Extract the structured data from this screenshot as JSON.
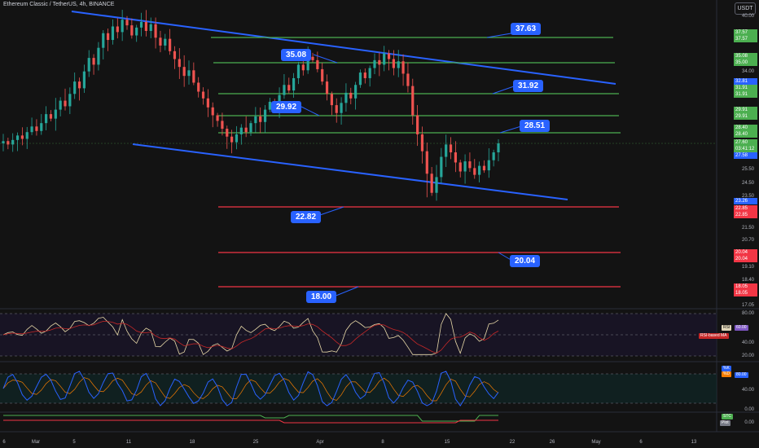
{
  "header": {
    "title": "Ethereum Classic / TetherUS, 4h, BINANCE"
  },
  "currency_button": {
    "label": "USDT"
  },
  "price_levels": {
    "resistance": [
      {
        "value": 37.63,
        "label": "37.63"
      },
      {
        "value": 35.08,
        "label": "35.08"
      },
      {
        "value": 31.92,
        "label": "31.92"
      },
      {
        "value": 29.92,
        "label": "29.92"
      },
      {
        "value": 28.51,
        "label": "28.51"
      }
    ],
    "support": [
      {
        "value": 22.82,
        "label": "22.82"
      },
      {
        "value": 20.04,
        "label": "20.04"
      },
      {
        "value": 18.0,
        "label": "18.00"
      }
    ]
  },
  "chart_data": {
    "type": "candlestick",
    "symbol": "ETCUSDT",
    "interval": "4h",
    "y_axis_ticks": [
      "40.00",
      "37.57",
      "35.08",
      "34.00",
      "32.81",
      "31.91",
      "29.91",
      "28.40",
      "27.60",
      "25.50",
      "24.50",
      "23.50",
      "22.85",
      "21.50",
      "20.70",
      "20.04",
      "19.10",
      "18.40",
      "18.05",
      "17.05"
    ],
    "x_axis_ticks": [
      "6",
      "Mar",
      "5",
      "11",
      "18",
      "25",
      "Apr",
      "8",
      "15",
      "22",
      "26",
      "May",
      "6",
      "13"
    ],
    "current_price": "27.60",
    "countdown": "03:41:12",
    "price_tags": [
      {
        "label": "37.57",
        "color": "#4caf50"
      },
      {
        "label": "35.08",
        "color": "#4caf50"
      },
      {
        "label": "35.00",
        "color": "#4caf50"
      },
      {
        "label": "32.81",
        "color": "#2962ff"
      },
      {
        "label": "31.91",
        "color": "#4caf50"
      },
      {
        "label": "29.91",
        "color": "#4caf50"
      },
      {
        "label": "28.40",
        "color": "#4caf50"
      },
      {
        "label": "27.58",
        "color": "#2962ff"
      },
      {
        "label": "23.26",
        "color": "#2962ff"
      },
      {
        "label": "22.85",
        "color": "#f23645"
      },
      {
        "label": "20.04",
        "color": "#f23645"
      },
      {
        "label": "18.05",
        "color": "#f23645"
      }
    ],
    "closes": [
      27.8,
      27.5,
      27.9,
      28.3,
      28.0,
      28.6,
      29.1,
      28.7,
      29.4,
      30.2,
      29.8,
      30.6,
      31.4,
      30.9,
      32.0,
      33.1,
      32.5,
      34.0,
      35.2,
      34.6,
      36.1,
      37.4,
      36.8,
      38.0,
      37.5,
      38.6,
      38.1,
      37.2,
      37.9,
      38.4,
      37.6,
      38.2,
      37.0,
      36.3,
      36.9,
      35.8,
      35.1,
      34.4,
      33.6,
      34.1,
      33.0,
      32.2,
      31.6,
      30.8,
      30.1,
      29.6,
      28.9,
      28.2,
      27.7,
      28.4,
      29.0,
      28.6,
      29.4,
      30.0,
      29.5,
      30.6,
      31.3,
      30.8,
      31.9,
      32.8,
      32.3,
      33.4,
      34.6,
      34.1,
      35.3,
      35.0,
      34.2,
      33.1,
      32.0,
      31.0,
      30.3,
      31.2,
      32.1,
      31.6,
      32.8,
      33.9,
      33.4,
      34.3,
      35.0,
      34.6,
      35.6,
      35.1,
      34.3,
      34.9,
      33.8,
      32.7,
      30.1,
      28.4,
      26.9,
      24.9,
      23.2,
      24.6,
      26.4,
      27.5,
      26.8,
      25.9,
      25.1,
      26.0,
      25.4,
      24.8,
      25.6,
      25.2,
      26.1,
      26.8,
      27.6
    ],
    "indicators": [
      {
        "name": "RSI",
        "labels": [
          "RSI",
          "RSI-based MA"
        ],
        "axis": [
          "80.00",
          "60.00",
          "40.00",
          "20.00"
        ],
        "value": "60.00"
      },
      {
        "name": "Stoch RSI",
        "labels": [
          "%K",
          "%D"
        ],
        "axis": [
          "80.00",
          "40.00",
          "0.00"
        ],
        "value": "80.00"
      },
      {
        "name": "STC",
        "labels": [
          "STC",
          "Plot"
        ],
        "axis": [
          "0.00"
        ],
        "value": "0.00"
      }
    ]
  }
}
